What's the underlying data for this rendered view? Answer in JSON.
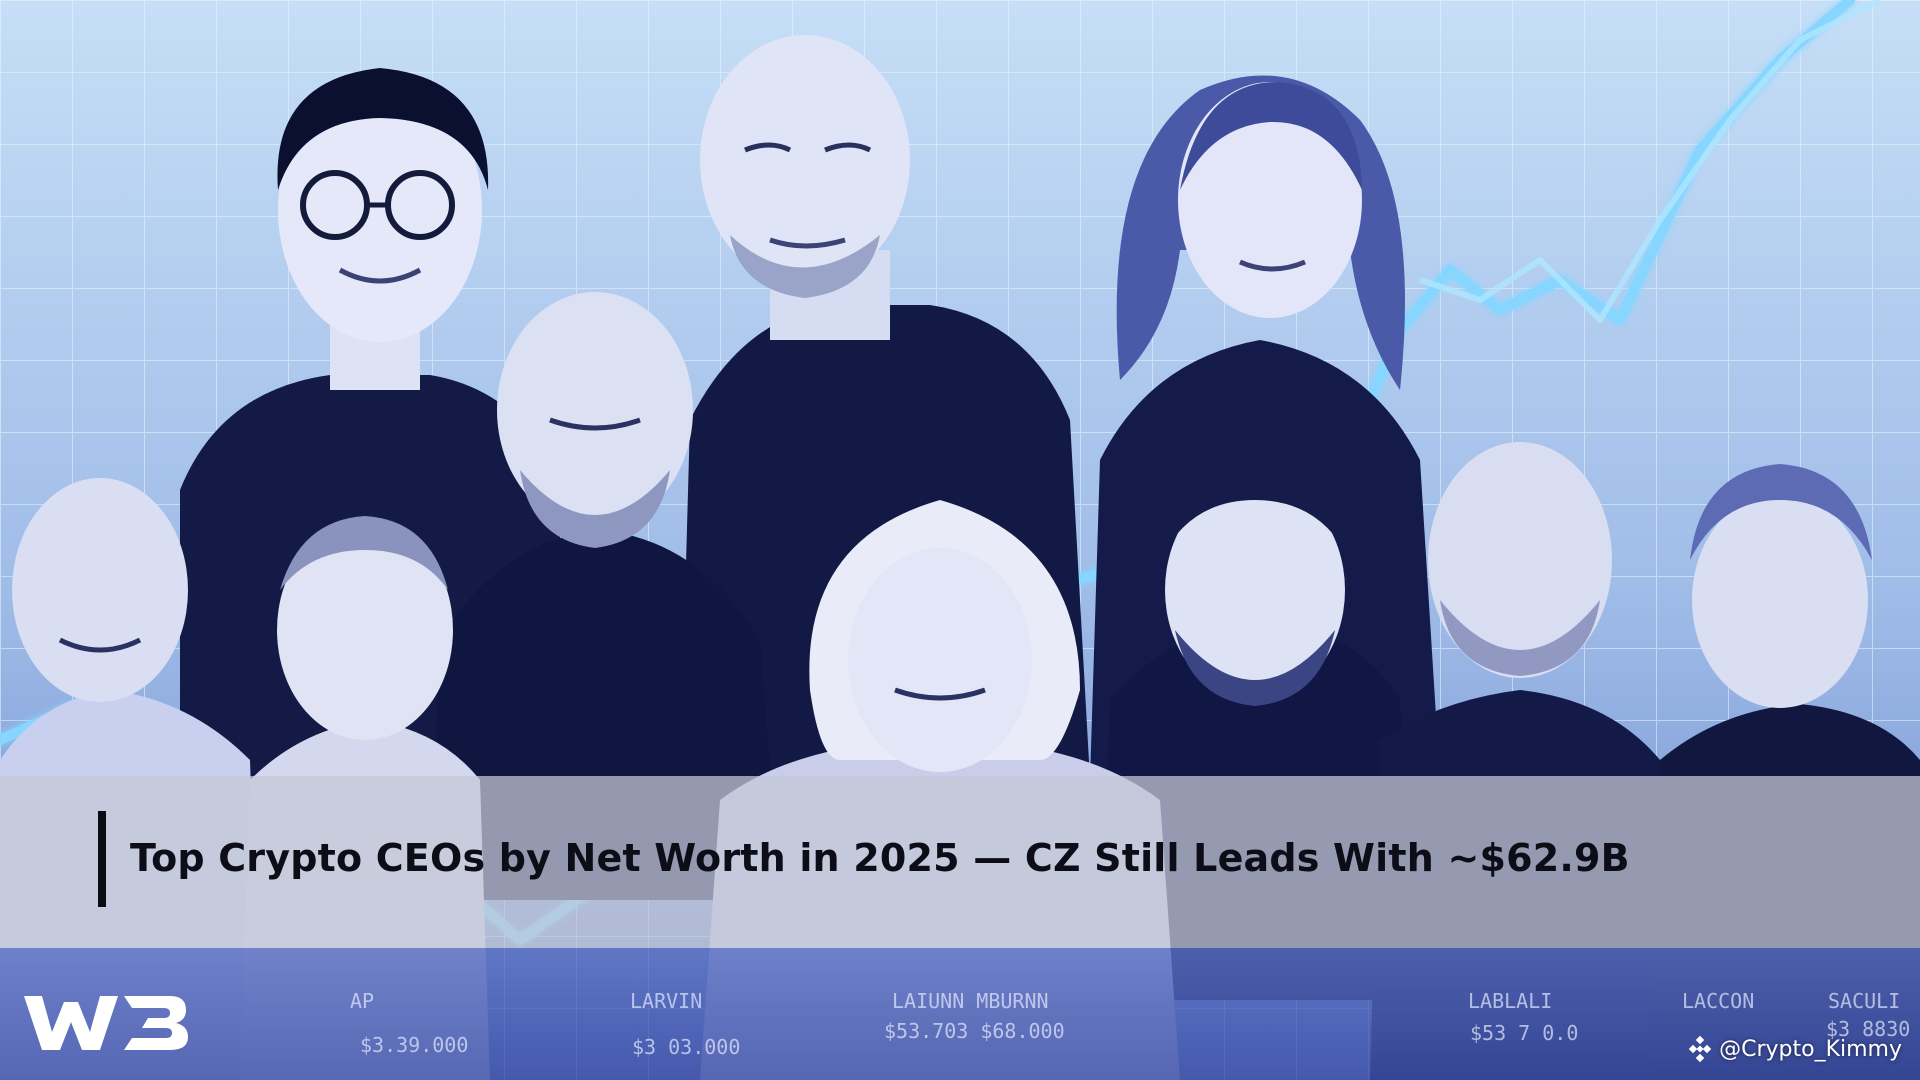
{
  "caption": {
    "headline": "Top Crypto CEOs by Net Worth in 2025 — CZ Still Leads With ~$62.9B"
  },
  "branding": {
    "logo_text": "W3",
    "watermark_handle": "@Crypto_Kimmy",
    "watermark_icon": "binance-diamond-icon"
  },
  "illustration": {
    "faint_labels": [
      {
        "name": "AP",
        "amount": "$3.39.000"
      },
      {
        "name": "LARVIN",
        "amount": "$3 03.000"
      },
      {
        "name": "LAIUNN MBURNN",
        "amount": "$53.703 $68.000"
      },
      {
        "name": "LABLALI",
        "amount": "$53 7 0.0"
      },
      {
        "name": "LACCON",
        "amount": ""
      },
      {
        "name": "SACULI",
        "amount": "$3 8830"
      }
    ]
  },
  "colors": {
    "background_top": "#c4dcf4",
    "background_bottom": "#6f8fd2",
    "grid_line": "#e6f2ff",
    "trend_line": "#7fd2ff",
    "caption_band": "#c4c8d6",
    "shirt_dark": "#121a4a",
    "skin_light": "#e2e6f6"
  }
}
